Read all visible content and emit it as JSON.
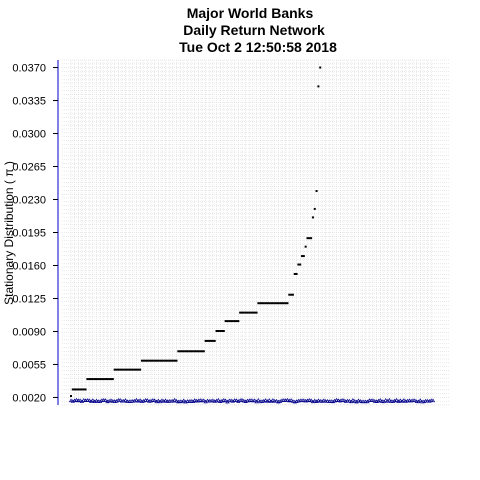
{
  "chart_data": {
    "type": "scatter",
    "title_lines": [
      "Major World Banks",
      "Daily Return Network",
      "Tue Oct  2 12:50:58 2018"
    ],
    "xlabel": "",
    "ylabel": "Stationary Distribution (  π  )",
    "ylim": [
      0.0012,
      0.0378
    ],
    "y_ticks": [
      "0.0020",
      "0.0055",
      "0.0090",
      "0.0125",
      "0.0160",
      "0.0195",
      "0.0230",
      "0.0265",
      "0.0300",
      "0.0335",
      "0.0370"
    ],
    "grid": true,
    "n_points": 200,
    "colors": {
      "grid": "#d3d3d3",
      "points": "#000000",
      "baseline_points": "#00008b",
      "axis": "#0000cd"
    },
    "level_groups": [
      {
        "count": 1,
        "value": 0.00215
      },
      {
        "count": 8,
        "value": 0.00285
      },
      {
        "count": 15,
        "value": 0.00395
      },
      {
        "count": 15,
        "value": 0.00495
      },
      {
        "count": 20,
        "value": 0.0059
      },
      {
        "count": 15,
        "value": 0.0069
      },
      {
        "count": 6,
        "value": 0.008
      },
      {
        "count": 5,
        "value": 0.00905
      },
      {
        "count": 8,
        "value": 0.0101
      },
      {
        "count": 10,
        "value": 0.011
      },
      {
        "count": 17,
        "value": 0.012
      },
      {
        "count": 3,
        "value": 0.0129
      },
      {
        "count": 2,
        "value": 0.0151
      },
      {
        "count": 2,
        "value": 0.0161
      },
      {
        "count": 2,
        "value": 0.017
      },
      {
        "count": 1,
        "value": 0.018
      },
      {
        "count": 3,
        "value": 0.0189
      },
      {
        "count": 1,
        "value": 0.0211
      },
      {
        "count": 1,
        "value": 0.022
      },
      {
        "count": 1,
        "value": 0.0239
      },
      {
        "count": 1,
        "value": 0.035
      },
      {
        "count": 1,
        "value": 0.037
      }
    ],
    "baseline_value": 0.00165,
    "baseline_spread": 0.0001
  }
}
